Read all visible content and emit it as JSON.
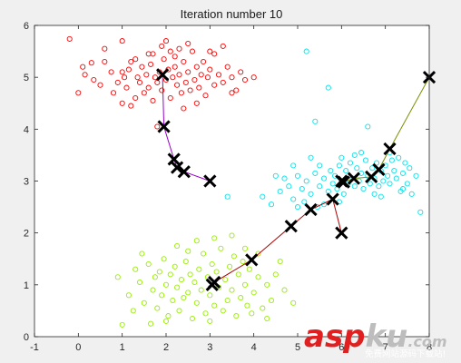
{
  "chart_data": {
    "type": "scatter",
    "title": "Iteration number 10",
    "xlabel": "",
    "ylabel": "",
    "xlim": [
      -1,
      8
    ],
    "ylim": [
      0,
      6
    ],
    "x_ticks": [
      -1,
      0,
      1,
      2,
      3,
      4,
      5,
      6,
      7,
      8
    ],
    "y_ticks": [
      0,
      1,
      2,
      3,
      4,
      5,
      6
    ],
    "grid": false,
    "series": [
      {
        "color": "#ff0000",
        "marker": "circle-open",
        "points": [
          [
            -0.2,
            5.74
          ],
          [
            0.1,
            5.2
          ],
          [
            0.15,
            5.05
          ],
          [
            0.3,
            5.28
          ],
          [
            0.35,
            4.95
          ],
          [
            0.5,
            4.85
          ],
          [
            0.6,
            5.3
          ],
          [
            0.75,
            5.1
          ],
          [
            0.8,
            4.7
          ],
          [
            0.9,
            4.9
          ],
          [
            1.0,
            5.7
          ],
          [
            1.0,
            5.1
          ],
          [
            1.05,
            5.0
          ],
          [
            1.1,
            4.8
          ],
          [
            1.15,
            5.15
          ],
          [
            1.2,
            5.3
          ],
          [
            1.3,
            4.6
          ],
          [
            1.35,
            5.0
          ],
          [
            1.4,
            4.9
          ],
          [
            1.45,
            5.2
          ],
          [
            1.5,
            4.7
          ],
          [
            1.55,
            5.05
          ],
          [
            1.6,
            4.8
          ],
          [
            1.65,
            5.25
          ],
          [
            1.7,
            4.55
          ],
          [
            1.75,
            5.0
          ],
          [
            1.8,
            4.9
          ],
          [
            1.85,
            5.1
          ],
          [
            1.9,
            4.75
          ],
          [
            1.95,
            5.35
          ],
          [
            2.0,
            4.95
          ],
          [
            2.05,
            5.15
          ],
          [
            2.1,
            4.6
          ],
          [
            2.15,
            5.0
          ],
          [
            2.2,
            5.2
          ],
          [
            2.25,
            4.85
          ],
          [
            2.3,
            5.05
          ],
          [
            2.35,
            4.7
          ],
          [
            2.4,
            5.3
          ],
          [
            2.45,
            4.9
          ],
          [
            2.5,
            5.1
          ],
          [
            2.55,
            4.75
          ],
          [
            2.6,
            5.5
          ],
          [
            2.65,
            4.95
          ],
          [
            2.7,
            5.2
          ],
          [
            2.75,
            4.8
          ],
          [
            2.8,
            5.05
          ],
          [
            2.85,
            5.3
          ],
          [
            2.9,
            4.65
          ],
          [
            2.95,
            5.0
          ],
          [
            3.0,
            5.15
          ],
          [
            3.1,
            4.85
          ],
          [
            3.2,
            5.05
          ],
          [
            3.3,
            4.9
          ],
          [
            3.4,
            5.2
          ],
          [
            3.5,
            5.0
          ],
          [
            3.6,
            4.75
          ],
          [
            3.7,
            5.1
          ],
          [
            3.8,
            4.95
          ],
          [
            4.0,
            5.0
          ],
          [
            1.7,
            5.45
          ],
          [
            2.1,
            5.5
          ],
          [
            2.5,
            5.65
          ],
          [
            1.9,
            5.6
          ],
          [
            2.3,
            5.55
          ],
          [
            0.6,
            5.55
          ],
          [
            1.3,
            5.35
          ],
          [
            1.6,
            5.45
          ],
          [
            2.0,
            5.7
          ],
          [
            2.2,
            5.4
          ],
          [
            3.1,
            5.45
          ],
          [
            3.5,
            4.7
          ],
          [
            1.2,
            4.45
          ],
          [
            2.7,
            4.5
          ],
          [
            0.0,
            4.7
          ],
          [
            1.8,
            4.05
          ],
          [
            2.4,
            4.4
          ],
          [
            3.3,
            5.6
          ],
          [
            3.0,
            5.5
          ],
          [
            1.0,
            4.5
          ]
        ]
      },
      {
        "color": "#00e5ee",
        "marker": "circle-open",
        "points": [
          [
            5.2,
            5.5
          ],
          [
            5.7,
            4.8
          ],
          [
            5.4,
            4.15
          ],
          [
            6.6,
            4.05
          ],
          [
            4.2,
            2.7
          ],
          [
            4.4,
            2.55
          ],
          [
            4.6,
            2.8
          ],
          [
            4.7,
            3.05
          ],
          [
            4.8,
            2.9
          ],
          [
            4.9,
            2.65
          ],
          [
            5.0,
            3.1
          ],
          [
            5.1,
            2.85
          ],
          [
            5.2,
            3.0
          ],
          [
            5.3,
            2.75
          ],
          [
            5.4,
            3.15
          ],
          [
            5.5,
            2.9
          ],
          [
            5.6,
            3.05
          ],
          [
            5.7,
            2.8
          ],
          [
            5.75,
            3.2
          ],
          [
            5.8,
            2.95
          ],
          [
            5.85,
            3.1
          ],
          [
            5.9,
            2.85
          ],
          [
            5.95,
            3.3
          ],
          [
            6.0,
            3.0
          ],
          [
            6.05,
            2.75
          ],
          [
            6.1,
            3.2
          ],
          [
            6.15,
            2.95
          ],
          [
            6.2,
            3.35
          ],
          [
            6.25,
            3.05
          ],
          [
            6.3,
            2.9
          ],
          [
            6.35,
            3.25
          ],
          [
            6.4,
            3.0
          ],
          [
            6.45,
            3.15
          ],
          [
            6.5,
            2.85
          ],
          [
            6.55,
            3.4
          ],
          [
            6.6,
            3.1
          ],
          [
            6.65,
            2.95
          ],
          [
            6.7,
            3.25
          ],
          [
            6.75,
            3.05
          ],
          [
            6.8,
            3.35
          ],
          [
            6.85,
            2.9
          ],
          [
            6.9,
            3.2
          ],
          [
            6.95,
            3.0
          ],
          [
            7.0,
            3.3
          ],
          [
            7.05,
            3.1
          ],
          [
            7.1,
            2.95
          ],
          [
            7.15,
            3.4
          ],
          [
            7.2,
            3.2
          ],
          [
            7.25,
            3.05
          ],
          [
            7.3,
            3.45
          ],
          [
            7.35,
            2.8
          ],
          [
            7.4,
            3.15
          ],
          [
            7.45,
            3.35
          ],
          [
            7.5,
            2.95
          ],
          [
            7.55,
            3.25
          ],
          [
            7.6,
            2.75
          ],
          [
            7.7,
            3.1
          ],
          [
            7.8,
            2.4
          ],
          [
            5.0,
            2.5
          ],
          [
            5.5,
            3.3
          ],
          [
            6.0,
            3.45
          ],
          [
            6.3,
            3.5
          ],
          [
            5.6,
            2.55
          ],
          [
            4.5,
            3.1
          ],
          [
            3.4,
            2.7
          ],
          [
            5.3,
            3.45
          ],
          [
            6.9,
            2.7
          ],
          [
            7.1,
            3.55
          ],
          [
            4.9,
            3.3
          ],
          [
            5.95,
            2.6
          ],
          [
            6.45,
            3.55
          ],
          [
            7.4,
            2.85
          ],
          [
            5.15,
            2.6
          ],
          [
            6.75,
            2.75
          ],
          [
            5.45,
            2.5
          ]
        ]
      },
      {
        "color": "#99ee00",
        "marker": "circle-open",
        "points": [
          [
            1.0,
            0.23
          ],
          [
            1.15,
            0.8
          ],
          [
            1.3,
            1.3
          ],
          [
            1.4,
            1.05
          ],
          [
            1.5,
            0.65
          ],
          [
            1.6,
            1.4
          ],
          [
            1.7,
            0.9
          ],
          [
            1.75,
            1.15
          ],
          [
            1.8,
            0.55
          ],
          [
            1.85,
            1.25
          ],
          [
            1.9,
            0.8
          ],
          [
            1.95,
            1.5
          ],
          [
            2.0,
            1.0
          ],
          [
            2.05,
            0.4
          ],
          [
            2.1,
            1.2
          ],
          [
            2.15,
            0.7
          ],
          [
            2.2,
            1.35
          ],
          [
            2.25,
            0.95
          ],
          [
            2.3,
            0.5
          ],
          [
            2.35,
            1.1
          ],
          [
            2.4,
            0.75
          ],
          [
            2.45,
            1.45
          ],
          [
            2.5,
            0.85
          ],
          [
            2.55,
            1.2
          ],
          [
            2.6,
            0.35
          ],
          [
            2.65,
            1.05
          ],
          [
            2.7,
            0.65
          ],
          [
            2.75,
            1.3
          ],
          [
            2.8,
            0.9
          ],
          [
            2.85,
            1.6
          ],
          [
            2.9,
            0.45
          ],
          [
            2.95,
            1.15
          ],
          [
            3.0,
            0.8
          ],
          [
            3.05,
            1.4
          ],
          [
            3.1,
            0.6
          ],
          [
            3.15,
            1.25
          ],
          [
            3.2,
            0.95
          ],
          [
            3.25,
            1.7
          ],
          [
            3.3,
            0.5
          ],
          [
            3.35,
            1.1
          ],
          [
            3.4,
            0.7
          ],
          [
            3.45,
            1.35
          ],
          [
            3.5,
            0.9
          ],
          [
            3.55,
            1.55
          ],
          [
            3.6,
            0.4
          ],
          [
            3.65,
            1.2
          ],
          [
            3.7,
            0.75
          ],
          [
            3.75,
            1.45
          ],
          [
            3.8,
            1.0
          ],
          [
            3.85,
            0.6
          ],
          [
            3.9,
            1.3
          ],
          [
            4.0,
            0.85
          ],
          [
            4.1,
            1.15
          ],
          [
            4.2,
            0.55
          ],
          [
            4.3,
            1.0
          ],
          [
            4.4,
            0.7
          ],
          [
            4.5,
            1.2
          ],
          [
            4.7,
            0.9
          ],
          [
            4.9,
            0.65
          ],
          [
            0.9,
            1.15
          ],
          [
            1.25,
            0.5
          ],
          [
            1.65,
            0.25
          ],
          [
            2.25,
            1.75
          ],
          [
            2.7,
            1.85
          ],
          [
            3.1,
            1.9
          ],
          [
            3.5,
            1.95
          ],
          [
            3.8,
            1.7
          ],
          [
            4.1,
            1.6
          ],
          [
            4.3,
            0.35
          ],
          [
            2.0,
            0.3
          ],
          [
            3.0,
            0.3
          ],
          [
            1.45,
            1.6
          ],
          [
            4.6,
            1.45
          ],
          [
            3.95,
            0.45
          ],
          [
            2.5,
            1.65
          ]
        ]
      }
    ],
    "centroid_paths": [
      {
        "color": "#9900cc",
        "points": [
          [
            3.0,
            3.0
          ],
          [
            2.41,
            3.18
          ],
          [
            2.25,
            3.26
          ],
          [
            2.18,
            3.42
          ],
          [
            1.95,
            4.05
          ],
          [
            1.92,
            5.05
          ]
        ]
      },
      {
        "color": "#7a9000",
        "points": [
          [
            6.0,
            3.0
          ],
          [
            6.05,
            2.98
          ],
          [
            6.28,
            3.05
          ],
          [
            6.68,
            3.08
          ],
          [
            6.85,
            3.22
          ],
          [
            7.1,
            3.62
          ],
          [
            8.0,
            5.0
          ]
        ]
      },
      {
        "color": "#aa0000",
        "points": [
          [
            6.0,
            2.0
          ],
          [
            5.8,
            2.65
          ],
          [
            5.3,
            2.45
          ],
          [
            4.85,
            2.13
          ],
          [
            3.95,
            1.48
          ],
          [
            3.1,
            1.05
          ],
          [
            3.05,
            1.0
          ]
        ]
      },
      {
        "color": "#1c3d6e",
        "points": [
          [
            6.0,
            2.0
          ],
          [
            6.0,
            2.0
          ]
        ]
      }
    ],
    "centroid_markers": [
      [
        3.0,
        3.0
      ],
      [
        2.41,
        3.18
      ],
      [
        2.25,
        3.26
      ],
      [
        2.18,
        3.42
      ],
      [
        1.95,
        4.05
      ],
      [
        1.92,
        5.05
      ],
      [
        6.0,
        3.0
      ],
      [
        6.05,
        2.98
      ],
      [
        6.28,
        3.05
      ],
      [
        6.68,
        3.08
      ],
      [
        6.85,
        3.22
      ],
      [
        7.1,
        3.62
      ],
      [
        8.0,
        5.0
      ],
      [
        6.0,
        2.0
      ],
      [
        5.8,
        2.65
      ],
      [
        5.3,
        2.45
      ],
      [
        4.85,
        2.13
      ],
      [
        3.95,
        1.48
      ],
      [
        3.1,
        1.05
      ],
      [
        3.05,
        1.0
      ]
    ]
  },
  "watermark": {
    "brand_a": "asp",
    "brand_b": "ku",
    "brand_c": ".com",
    "tagline": "免费网站源码下载站!"
  },
  "colors": {
    "figure_bg": "#f0f0f0",
    "axes_bg": "#ffffff",
    "axis": "#262626",
    "watermark_red": "#e02020",
    "watermark_gray": "#bdbdbd"
  }
}
